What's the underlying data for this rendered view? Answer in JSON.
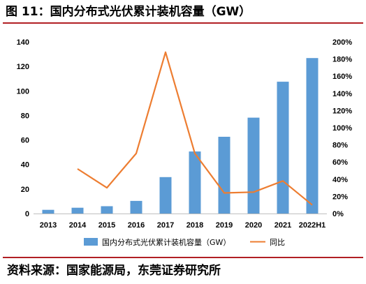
{
  "figure": {
    "title": "图 11：国内分布式光伏累计装机容量（GW）",
    "source": "资料来源：国家能源局，东莞证券研究所"
  },
  "chart_data": {
    "type": "bar",
    "categories": [
      "2013",
      "2014",
      "2015",
      "2016",
      "2017",
      "2018",
      "2019",
      "2020",
      "2021",
      "2022H1"
    ],
    "series": [
      {
        "name": "国内分布式光伏累计装机容量（GW）",
        "type": "bar",
        "axis": "left",
        "color": "#5b9bd5",
        "values": [
          3,
          4.7,
          6,
          10.3,
          29.7,
          50.6,
          62.6,
          78.2,
          107.5,
          126.8
        ]
      },
      {
        "name": "同比",
        "type": "line",
        "axis": "right",
        "color": "#ed7d31",
        "values": [
          null,
          0.52,
          0.3,
          0.7,
          1.88,
          0.7,
          0.24,
          0.25,
          0.38,
          0.1
        ]
      }
    ],
    "left_axis": {
      "min": 0,
      "max": 140,
      "step": 20,
      "ticks": [
        "0",
        "20",
        "40",
        "60",
        "80",
        "100",
        "120",
        "140"
      ]
    },
    "right_axis": {
      "min": 0,
      "max": 2.0,
      "step": 0.2,
      "ticks": [
        "0%",
        "20%",
        "40%",
        "60%",
        "80%",
        "100%",
        "120%",
        "140%",
        "160%",
        "180%",
        "200%"
      ]
    },
    "grid": false,
    "legend_position": "bottom"
  }
}
